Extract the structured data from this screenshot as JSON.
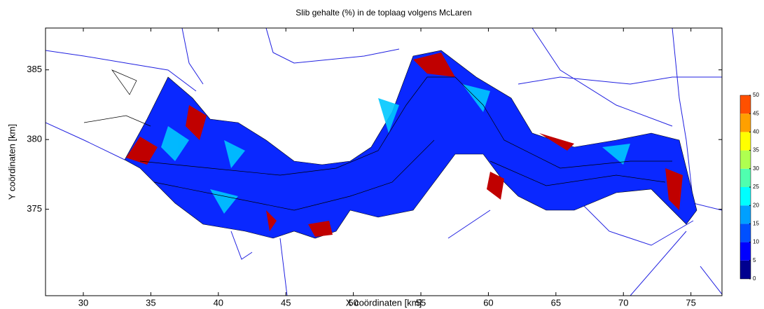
{
  "chart_data": {
    "type": "contour",
    "title": "Slib gehalte (%) in de toplaag volgens McLaren",
    "xlabel": "X coördinaten [km]",
    "ylabel": "Y coördinaten [km]",
    "xlim": [
      27.2,
      77.3
    ],
    "xticks": [
      30,
      35,
      40,
      45,
      50,
      55,
      60,
      65,
      70,
      75
    ],
    "ylim": [
      368.8,
      388
    ],
    "yticks": [
      375,
      380,
      385
    ],
    "colorbar_ticks": [
      0,
      5,
      10,
      15,
      20,
      25,
      30,
      35,
      40,
      45,
      50
    ],
    "colorbar_colors": [
      "#00008f",
      "#0000ff",
      "#0050ff",
      "#00a0ff",
      "#00ffff",
      "#50ffaf",
      "#afff50",
      "#ffff00",
      "#ffa000",
      "#ff5000",
      "#c00000"
    ]
  }
}
